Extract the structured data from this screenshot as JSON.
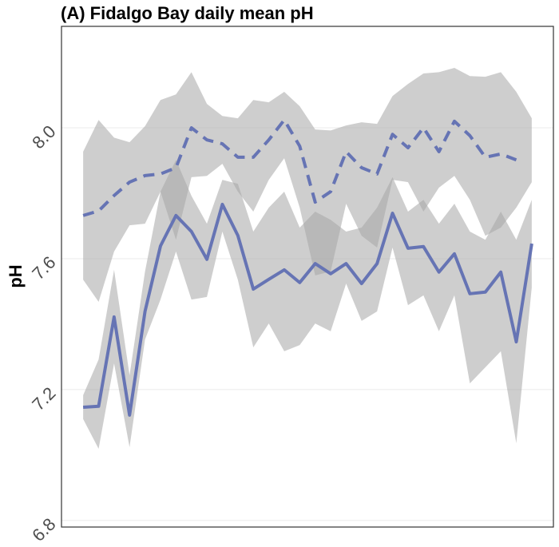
{
  "chart_data": {
    "type": "line",
    "title": "(A) Fidalgo Bay daily mean pH",
    "y_label": "pH",
    "categories": [
      null,
      null,
      null,
      null,
      null,
      null,
      null,
      null,
      null,
      null,
      null,
      null,
      null,
      null,
      null,
      null,
      null,
      null,
      null,
      null,
      null,
      null,
      null,
      null,
      null,
      null,
      null,
      null,
      null,
      null
    ],
    "xlim": [
      -1.4,
      30.4
    ],
    "ylim": [
      6.78,
      8.31
    ],
    "yticks": [
      {
        "value": 6.8,
        "label": "6.8"
      },
      7.2,
      7.6,
      {
        "value": 8.0,
        "label": "8.0"
      }
    ],
    "grid": true,
    "ribbon_color": "#a6a6a6",
    "series": [
      {
        "color": "#6674b4",
        "dashed": false,
        "values": [
          7.146,
          7.149,
          7.422,
          7.122,
          7.439,
          7.639,
          7.732,
          7.683,
          7.598,
          7.766,
          7.671,
          7.507,
          7.537,
          7.566,
          7.527,
          7.585,
          7.554,
          7.585,
          7.524,
          7.585,
          7.739,
          7.632,
          7.637,
          7.559,
          7.615,
          7.493,
          7.498,
          7.559,
          7.346,
          7.646
        ],
        "upper": [
          7.183,
          7.292,
          7.566,
          7.244,
          7.561,
          7.805,
          7.902,
          7.792,
          7.707,
          7.841,
          7.829,
          7.683,
          7.756,
          7.805,
          7.695,
          7.744,
          7.719,
          7.683,
          7.695,
          7.756,
          7.849,
          7.744,
          7.78,
          7.707,
          7.768,
          7.683,
          7.658,
          7.744,
          7.658,
          7.78
        ],
        "lower": [
          7.11,
          7.019,
          7.28,
          7.024,
          7.353,
          7.475,
          7.622,
          7.475,
          7.483,
          7.683,
          7.536,
          7.329,
          7.402,
          7.317,
          7.336,
          7.402,
          7.378,
          7.524,
          7.41,
          7.439,
          7.634,
          7.458,
          7.488,
          7.378,
          7.488,
          7.219,
          7.268,
          7.317,
          7.036,
          7.512
        ]
      },
      {
        "color": "#6674b4",
        "dashed": true,
        "values": [
          7.732,
          7.746,
          7.793,
          7.834,
          7.854,
          7.859,
          7.878,
          8.0,
          7.963,
          7.951,
          7.91,
          7.91,
          7.963,
          8.024,
          7.944,
          7.773,
          7.805,
          7.927,
          7.878,
          7.859,
          7.98,
          7.939,
          8.0,
          7.927,
          8.02,
          7.976,
          7.91,
          7.92,
          7.902,
          null
        ],
        "upper": [
          7.927,
          8.024,
          7.97,
          7.956,
          8.005,
          8.085,
          8.102,
          8.17,
          8.073,
          8.036,
          8.029,
          8.085,
          8.078,
          8.11,
          8.066,
          7.995,
          7.992,
          8.007,
          8.017,
          8.012,
          8.097,
          8.134,
          8.166,
          8.17,
          8.183,
          8.158,
          8.156,
          8.17,
          8.11,
          8.029
        ],
        "lower": [
          7.536,
          7.468,
          7.622,
          7.702,
          7.707,
          7.805,
          7.658,
          7.849,
          7.853,
          7.89,
          7.805,
          7.744,
          7.841,
          7.907,
          7.756,
          7.549,
          7.561,
          7.768,
          7.67,
          7.634,
          7.841,
          7.834,
          7.744,
          7.817,
          7.853,
          7.78,
          7.67,
          7.695,
          7.756,
          7.834
        ]
      }
    ]
  }
}
